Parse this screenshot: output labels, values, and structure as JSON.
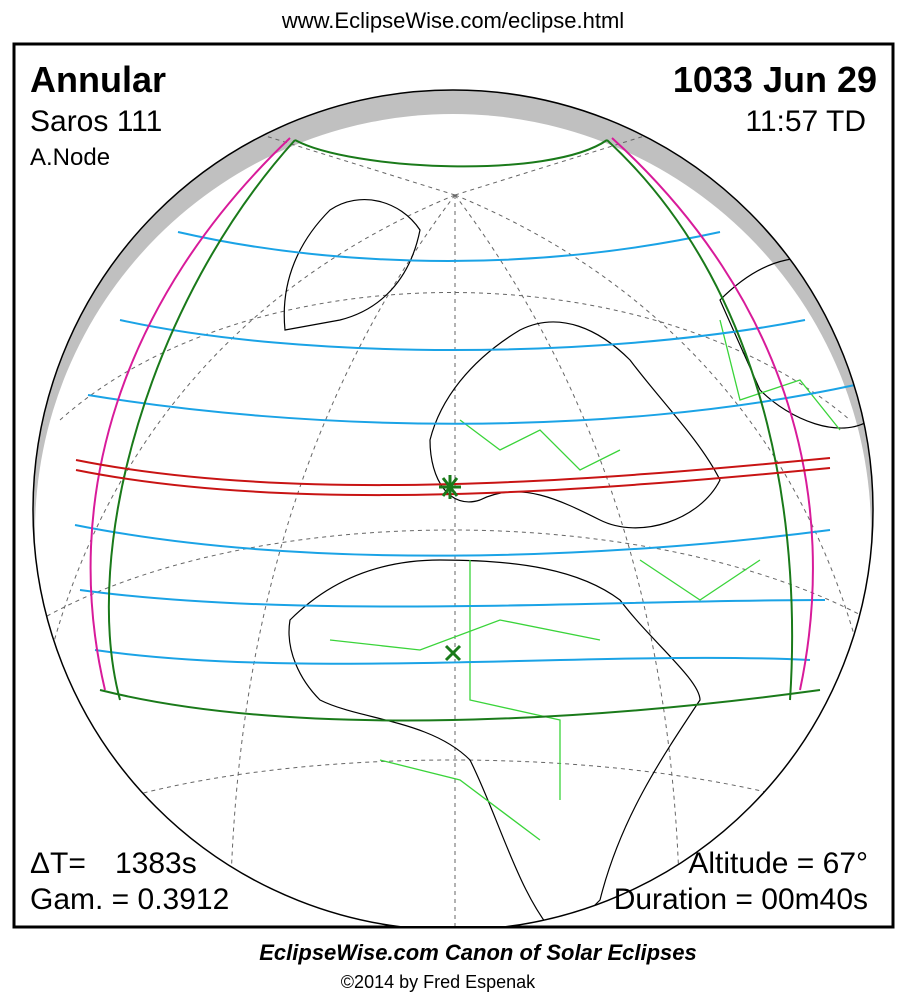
{
  "header": {
    "url": "www.EclipseWise.com/eclipse.html"
  },
  "panel": {
    "top_left": {
      "type": "Annular",
      "saros": "Saros 111",
      "node": "A.Node"
    },
    "top_right": {
      "date": "1033 Jun 29",
      "time": "11:57 TD"
    },
    "bottom_left": {
      "delta_t_label": "ΔT=",
      "delta_t_value": "1383s",
      "gamma": "Gam. = 0.3912"
    },
    "bottom_right": {
      "altitude": "Altitude = 67°",
      "duration": "Duration = 00m40s"
    }
  },
  "footer": {
    "title": "EclipseWise.com Canon of Solar Eclipses",
    "copyright": "©2014 by Fred Espenak"
  }
}
